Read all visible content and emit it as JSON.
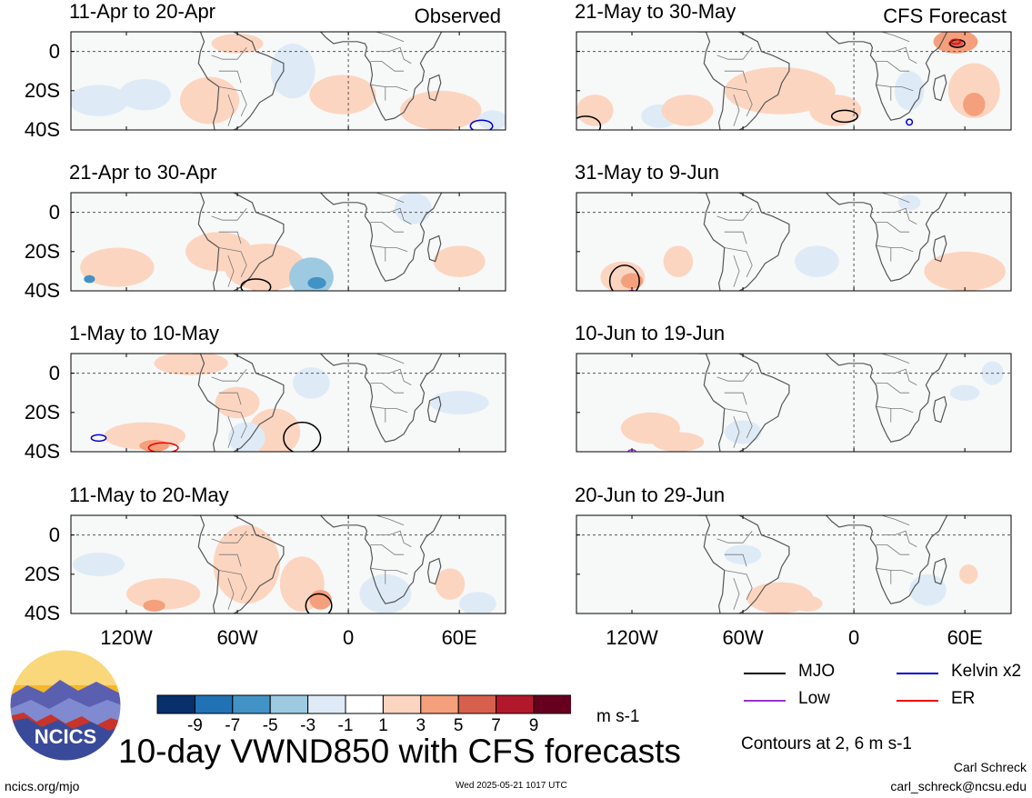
{
  "chart_data": {
    "type": "heatmap",
    "title": "10-day VWND850 with CFS forecasts",
    "variable": "VWND850",
    "units": "m s-1",
    "contours_note": "Contours at 2, 6 m s-1",
    "colorbar": {
      "ticks": [
        "-9",
        "-7",
        "-5",
        "-3",
        "-1",
        "1",
        "3",
        "5",
        "7",
        "9"
      ],
      "colors": [
        "#08306b",
        "#2171b5",
        "#4292c6",
        "#9ecae1",
        "#deebf7",
        "#ffffff",
        "#fcd5c0",
        "#f4a07c",
        "#d6604d",
        "#b2182b",
        "#67001f"
      ]
    },
    "x_ticks": [
      "120W",
      "60W",
      "0",
      "60E"
    ],
    "y_ticks": [
      "0",
      "20S",
      "40S"
    ],
    "legend": [
      {
        "label": "MJO",
        "color": "#000000"
      },
      {
        "label": "Kelvin x2",
        "color": "#0000cc"
      },
      {
        "label": "Low",
        "color": "#9933cc"
      },
      {
        "label": "ER",
        "color": "#ee0000"
      }
    ],
    "panels": [
      {
        "period": "11-Apr to 20-Apr",
        "tag": "Observed",
        "col": 0,
        "row": 0
      },
      {
        "period": "21-Apr to 30-Apr",
        "tag": "",
        "col": 0,
        "row": 1
      },
      {
        "period": "1-May to 10-May",
        "tag": "",
        "col": 0,
        "row": 2
      },
      {
        "period": "11-May to 20-May",
        "tag": "",
        "col": 0,
        "row": 3
      },
      {
        "period": "21-May to 30-May",
        "tag": "CFS Forecast",
        "col": 1,
        "row": 0
      },
      {
        "period": "31-May to 9-Jun",
        "tag": "",
        "col": 1,
        "row": 1
      },
      {
        "period": "10-Jun to 19-Jun",
        "tag": "",
        "col": 1,
        "row": 2
      },
      {
        "period": "20-Jun to 29-Jun",
        "tag": "",
        "col": 1,
        "row": 3
      }
    ]
  },
  "footer": {
    "logo_text": "NCICS",
    "site": "ncics.org/mjo",
    "timestamp": "Wed 2025-05-21 1017 UTC",
    "author": "Carl Schreck",
    "email": "carl_schreck@ncsu.edu"
  }
}
